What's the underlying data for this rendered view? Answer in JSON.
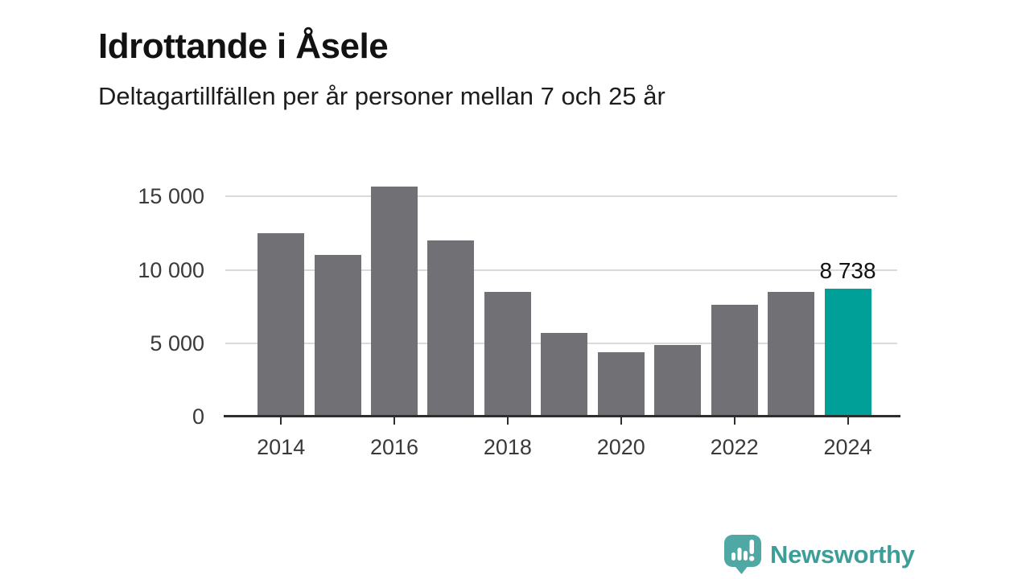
{
  "page": {
    "title": "Idrottande i Åsele",
    "subtitle": "Deltagartillfällen per år personer mellan 7 och 25 år"
  },
  "colors": {
    "bar_default": "#717075",
    "bar_highlight": "#00a098",
    "axis": "#2e2e2e",
    "gridline": "#dadada",
    "brand_icon": "#4fa8a3",
    "brand_text": "#3d9e99"
  },
  "chart_data": {
    "type": "bar",
    "title": "Idrottande i Åsele",
    "subtitle": "Deltagartillfällen per år personer mellan 7 och 25 år",
    "x": [
      2014,
      2015,
      2016,
      2017,
      2018,
      2019,
      2020,
      2021,
      2022,
      2023,
      2024
    ],
    "values": [
      12500,
      11000,
      15700,
      12000,
      8500,
      5700,
      4400,
      4900,
      7600,
      8500,
      8738
    ],
    "highlight_index": 10,
    "value_label": {
      "index": 10,
      "text": "8 738"
    },
    "xlabel": "",
    "ylabel": "",
    "ylim": [
      0,
      16500
    ],
    "yticks": [
      {
        "value": 0,
        "label": "0"
      },
      {
        "value": 5000,
        "label": "5 000"
      },
      {
        "value": 10000,
        "label": "10 000"
      },
      {
        "value": 15000,
        "label": "15 000"
      }
    ],
    "xtick_labels": [
      "2014",
      "2016",
      "2018",
      "2020",
      "2022",
      "2024"
    ],
    "grid": "horizontal gridlines at 5000/10000/15000",
    "legend": "none"
  },
  "footer": {
    "brand_name": "Newsworthy",
    "logo_icon": "bar-chart-exclamation-speech-bubble"
  }
}
